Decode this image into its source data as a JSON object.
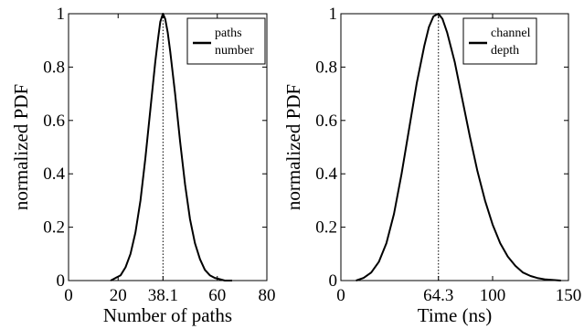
{
  "chart_data": [
    {
      "type": "line",
      "xlabel": "Number of paths",
      "ylabel": "normalized PDF",
      "xlim": [
        0,
        80
      ],
      "ylim": [
        0,
        1
      ],
      "xticks": [
        0,
        20,
        38.1,
        60,
        80
      ],
      "xtick_labels": [
        "0",
        "20",
        "38.1",
        "60",
        "80"
      ],
      "yticks": [
        0,
        0.2,
        0.4,
        0.6,
        0.8,
        1
      ],
      "ytick_labels": [
        "0",
        "0.2",
        "0.4",
        "0.6",
        "0.8",
        "1"
      ],
      "grid": false,
      "legend_position": "top-right",
      "legend_lines": [
        "paths",
        "number"
      ],
      "marker_x": 38.1,
      "series": [
        {
          "name": "paths number",
          "color": "#000000",
          "x": [
            17,
            19,
            21,
            23,
            25,
            27,
            29,
            31,
            33,
            35,
            36,
            37,
            38.1,
            39,
            40,
            41,
            43,
            45,
            47,
            49,
            51,
            53,
            55,
            57,
            59,
            61,
            63,
            66
          ],
          "y": [
            0,
            0.01,
            0.02,
            0.05,
            0.1,
            0.18,
            0.3,
            0.46,
            0.64,
            0.82,
            0.9,
            0.97,
            1.0,
            0.98,
            0.93,
            0.86,
            0.7,
            0.52,
            0.36,
            0.23,
            0.14,
            0.08,
            0.04,
            0.02,
            0.01,
            0.005,
            0,
            0
          ]
        }
      ]
    },
    {
      "type": "line",
      "xlabel": "Time (ns)",
      "ylabel": "normalized PDF",
      "xlim": [
        0,
        150
      ],
      "ylim": [
        0,
        1
      ],
      "xticks": [
        0,
        64.3,
        100,
        150
      ],
      "xtick_labels": [
        "0",
        "64.3",
        "100",
        "150"
      ],
      "yticks": [
        0,
        0.2,
        0.4,
        0.6,
        0.8,
        1
      ],
      "ytick_labels": [
        "0",
        "0.2",
        "0.4",
        "0.6",
        "0.8",
        "1"
      ],
      "grid": false,
      "legend_position": "top-right",
      "legend_lines": [
        "channel",
        "depth"
      ],
      "marker_x": 64.3,
      "series": [
        {
          "name": "channel depth",
          "color": "#000000",
          "x": [
            10,
            15,
            20,
            25,
            30,
            35,
            40,
            45,
            50,
            55,
            58,
            61,
            64.3,
            67,
            70,
            75,
            80,
            85,
            90,
            95,
            100,
            105,
            110,
            115,
            120,
            125,
            130,
            135,
            140,
            145
          ],
          "y": [
            0,
            0.01,
            0.03,
            0.07,
            0.14,
            0.25,
            0.4,
            0.57,
            0.74,
            0.88,
            0.95,
            0.99,
            1.0,
            0.98,
            0.93,
            0.82,
            0.68,
            0.54,
            0.41,
            0.3,
            0.21,
            0.14,
            0.09,
            0.055,
            0.03,
            0.017,
            0.009,
            0.004,
            0.002,
            0
          ]
        }
      ]
    }
  ]
}
